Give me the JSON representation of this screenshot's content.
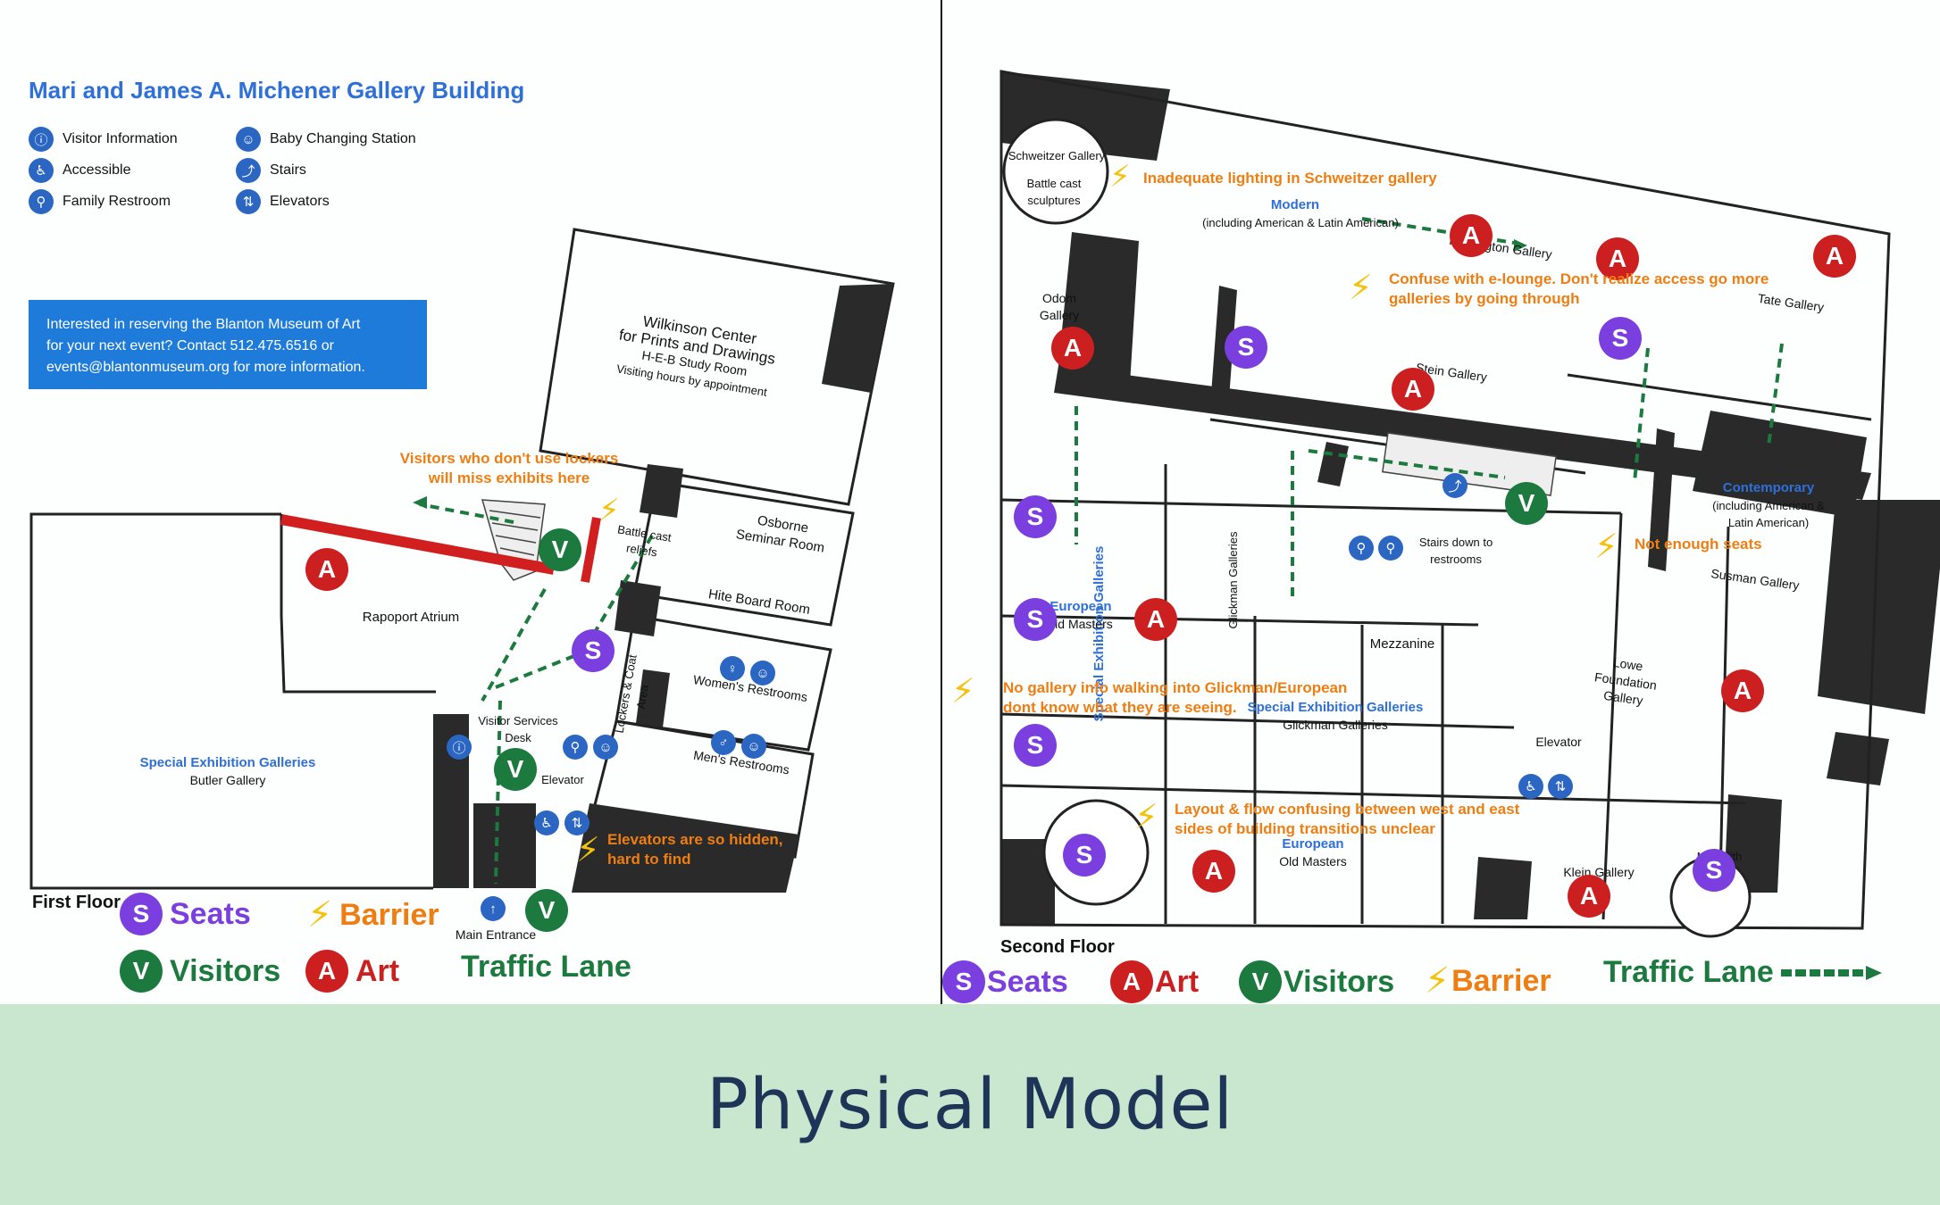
{
  "building_title": "Mari and James A. Michener Gallery Building",
  "legend": [
    {
      "label": "Visitor Information",
      "icon": "info-desk-icon"
    },
    {
      "label": "Accessible",
      "icon": "wheelchair-icon"
    },
    {
      "label": "Family Restroom",
      "icon": "family-restroom-icon"
    },
    {
      "label": "Baby Changing Station",
      "icon": "baby-changing-icon"
    },
    {
      "label": "Stairs",
      "icon": "stairs-icon"
    },
    {
      "label": "Elevators",
      "icon": "elevator-icon"
    }
  ],
  "info_box": {
    "line1": "Interested in reserving the Blanton Museum of Art",
    "line2": "for your next event? Contact 512.475.6516 or",
    "line3": "events@blantonmuseum.org for more information."
  },
  "first_floor": {
    "floor_label": "First Floor",
    "rooms": {
      "wilkinson1": "Wilkinson Center",
      "wilkinson2": "for Prints and Drawings",
      "wilkinson3": "H-E-B Study Room",
      "wilkinson4": "Visiting hours by appointment",
      "osborne": "Osborne Seminar Room",
      "battle": "Battle cast reliefs",
      "hite": "Hite Board Room",
      "womens": "Women's Restrooms",
      "mens": "Men's Restrooms",
      "lockers": "Lockers & Coat Area",
      "rapoport": "Rapoport Atrium",
      "special": "Special Exhibition Galleries",
      "butler": "Butler Gallery",
      "visitor_desk": "Visitor Services Desk",
      "elevator": "Elevator",
      "main_entrance": "Main Entrance"
    },
    "barriers": {
      "lockers": "Visitors who don't use lockers will miss exhibits here",
      "elevators": "Elevators are so hidden, hard to find"
    }
  },
  "second_floor": {
    "floor_label": "Second Floor",
    "rooms": {
      "schweitzer": "Schweitzer Gallery",
      "battle": "Battle cast sculptures",
      "modern": "Modern",
      "modern_sub": "(including American & Latin American)",
      "huntington": "Huntington Gallery",
      "odom": "Odom Gallery",
      "tate": "Tate Gallery",
      "stein": "Stein Gallery",
      "contemporary": "Contemporary",
      "contemporary_sub": "(including American & Latin American)",
      "susman": "Susman Gallery",
      "stairs_down": "Stairs down to restrooms",
      "mezzanine": "Mezzanine",
      "special_vertical": "Special Exhibition Galleries",
      "glickman_vertical": "Glickman Galleries",
      "european1": "European",
      "old_masters1": "Old Masters",
      "special2": "Special Exhibition Galleries",
      "glickman2": "Glickman Galleries",
      "lowe": "Lowe Foundation Gallery",
      "elevator": "Elevator",
      "european2": "European",
      "old_masters2": "Old Masters",
      "klein": "Klein Gallery",
      "meredith": "Meredith"
    },
    "barriers": {
      "lighting": "Inadequate lighting in Schweitzer gallery",
      "elounge": "Confuse with e-lounge.  Don't realize access go more galleries by going through",
      "seats": "Not enough seats",
      "gallery_info": "No gallery info walking into Glickman/European dont know what they are seeing.",
      "layout": "Layout & flow confusing between west and east sides of building transitions unclear"
    }
  },
  "key": {
    "seats": "Seats",
    "barrier": "Barrier",
    "visitors": "Visitors",
    "art": "Art",
    "traffic": "Traffic Lane"
  },
  "markers": {
    "seats": "S",
    "visitors": "V",
    "art": "A"
  },
  "colors": {
    "seats": "#7b3fe0",
    "visitors": "#1d7a3f",
    "art": "#cc1f1f",
    "barrier": "#ef7e12",
    "lane": "#1d7a3f",
    "blue": "#2f6fd8",
    "band": "#c9e6ce"
  },
  "caption": "Physical Model"
}
